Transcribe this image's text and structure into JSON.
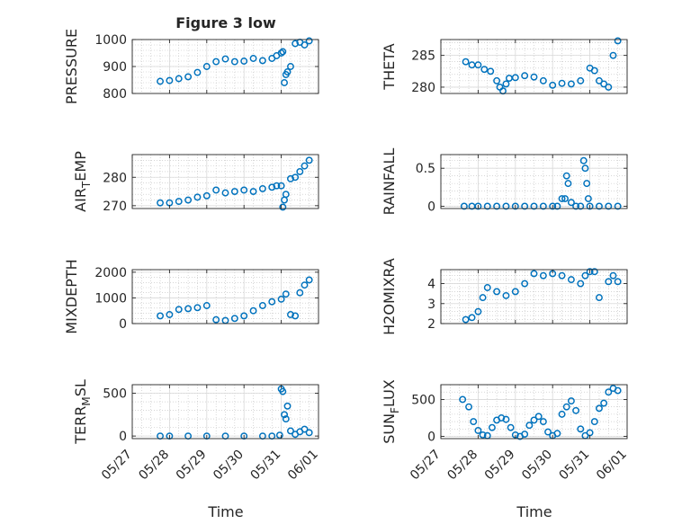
{
  "figure": {
    "title": "Figure 3 low",
    "xlabel": "Time"
  },
  "colors": {
    "marker": "#0072BD",
    "axis": "#262626",
    "grid": "#bfbfbf"
  },
  "chart_data": [
    {
      "id": "pressure",
      "type": "scatter",
      "ylabel": "PRESSURE",
      "ylim": [
        800,
        1000
      ],
      "yticks": [
        "800",
        "900",
        "1000"
      ],
      "xlim": [
        "05/27",
        "06/01"
      ],
      "xticks": [],
      "grid": "on",
      "x": [
        "05/27 18:00",
        "05/28 00:00",
        "05/28 06:00",
        "05/28 12:00",
        "05/28 18:00",
        "05/29 00:00",
        "05/29 06:00",
        "05/29 12:00",
        "05/29 18:00",
        "05/30 00:00",
        "05/30 06:00",
        "05/30 12:00",
        "05/30 18:00",
        "05/30 21:00",
        "05/31 00:00",
        "05/31 01:00",
        "05/31 02:00",
        "05/31 03:00",
        "05/31 04:00",
        "05/31 06:00",
        "05/31 09:00",
        "05/31 12:00",
        "05/31 15:00",
        "05/31 18:00"
      ],
      "y": [
        845,
        848,
        855,
        862,
        878,
        900,
        918,
        928,
        918,
        920,
        930,
        922,
        930,
        940,
        950,
        955,
        840,
        870,
        880,
        900,
        985,
        990,
        980,
        995
      ]
    },
    {
      "id": "theta",
      "type": "scatter",
      "ylabel": "THETA",
      "ylim": [
        279,
        287.5
      ],
      "yticks": [
        "280",
        "285"
      ],
      "xlim": [
        "05/27",
        "06/01"
      ],
      "xticks": [],
      "grid": "on",
      "x": [
        "05/27 16:00",
        "05/27 20:00",
        "05/28 00:00",
        "05/28 04:00",
        "05/28 08:00",
        "05/28 12:00",
        "05/28 14:00",
        "05/28 16:00",
        "05/28 18:00",
        "05/28 20:00",
        "05/29 00:00",
        "05/29 06:00",
        "05/29 12:00",
        "05/29 18:00",
        "05/30 00:00",
        "05/30 06:00",
        "05/30 12:00",
        "05/30 18:00",
        "05/31 00:00",
        "05/31 03:00",
        "05/31 06:00",
        "05/31 09:00",
        "05/31 12:00",
        "05/31 15:00",
        "05/31 18:00"
      ],
      "y": [
        284,
        283.5,
        283.5,
        282.8,
        282.5,
        281,
        280,
        279.4,
        280.5,
        281.4,
        281.5,
        281.8,
        281.6,
        281,
        280.3,
        280.6,
        280.5,
        281,
        283,
        282.6,
        281,
        280.5,
        280,
        285,
        287.3
      ]
    },
    {
      "id": "airtemp",
      "type": "scatter",
      "ylabel": "AIR_TEMP",
      "ylabel_main": "AIR",
      "ylabel_sub": "T",
      "ylabel_rest": "EMP",
      "ylim": [
        269,
        288
      ],
      "yticks": [
        "270",
        "280"
      ],
      "xlim": [
        "05/27",
        "06/01"
      ],
      "xticks": [],
      "grid": "on",
      "x": [
        "05/27 18:00",
        "05/28 00:00",
        "05/28 06:00",
        "05/28 12:00",
        "05/28 18:00",
        "05/29 00:00",
        "05/29 06:00",
        "05/29 12:00",
        "05/29 18:00",
        "05/30 00:00",
        "05/30 06:00",
        "05/30 12:00",
        "05/30 18:00",
        "05/30 21:00",
        "05/31 00:00",
        "05/31 01:00",
        "05/31 02:00",
        "05/31 03:00",
        "05/31 06:00",
        "05/31 09:00",
        "05/31 12:00",
        "05/31 15:00",
        "05/31 18:00"
      ],
      "y": [
        271,
        271,
        271.5,
        272,
        273,
        273.5,
        275.5,
        274.5,
        275,
        275.5,
        275,
        276,
        276.5,
        277,
        277,
        269.5,
        272,
        274,
        279.5,
        280,
        282,
        284,
        286
      ]
    },
    {
      "id": "rainfall",
      "type": "scatter",
      "ylabel": "RAINFALL",
      "ylim": [
        -0.03,
        0.68
      ],
      "yticks": [
        "0",
        "0.5"
      ],
      "xlim": [
        "05/27",
        "06/01"
      ],
      "xticks": [],
      "grid": "on",
      "x": [
        "05/27 15:00",
        "05/27 20:00",
        "05/28 00:00",
        "05/28 06:00",
        "05/28 12:00",
        "05/28 18:00",
        "05/29 00:00",
        "05/29 06:00",
        "05/29 12:00",
        "05/29 18:00",
        "05/30 00:00",
        "05/30 03:00",
        "05/30 06:00",
        "05/30 08:00",
        "05/30 09:00",
        "05/30 10:00",
        "05/30 12:00",
        "05/30 15:00",
        "05/30 18:00",
        "05/30 20:00",
        "05/30 21:00",
        "05/30 22:00",
        "05/30 23:00",
        "05/31 00:00",
        "05/31 06:00",
        "05/31 12:00",
        "05/31 18:00"
      ],
      "y": [
        0,
        0,
        0,
        0,
        0,
        0,
        0,
        0,
        0,
        0,
        0,
        0,
        0.1,
        0.1,
        0.4,
        0.3,
        0.05,
        0,
        0,
        0.6,
        0.5,
        0.3,
        0.1,
        0,
        0,
        0,
        0
      ]
    },
    {
      "id": "mixdepth",
      "type": "scatter",
      "ylabel": "MIXDEPTH",
      "ylim": [
        0,
        2100
      ],
      "yticks": [
        "0",
        "1000",
        "2000"
      ],
      "xlim": [
        "05/27",
        "06/01"
      ],
      "xticks": [],
      "grid": "on",
      "x": [
        "05/27 18:00",
        "05/28 00:00",
        "05/28 06:00",
        "05/28 12:00",
        "05/28 18:00",
        "05/29 00:00",
        "05/29 06:00",
        "05/29 12:00",
        "05/29 18:00",
        "05/30 00:00",
        "05/30 06:00",
        "05/30 12:00",
        "05/30 18:00",
        "05/31 00:00",
        "05/31 03:00",
        "05/31 06:00",
        "05/31 09:00",
        "05/31 12:00",
        "05/31 15:00",
        "05/31 18:00"
      ],
      "y": [
        300,
        350,
        550,
        580,
        620,
        700,
        150,
        120,
        200,
        300,
        500,
        700,
        850,
        950,
        1150,
        350,
        300,
        1200,
        1500,
        1700
      ]
    },
    {
      "id": "h2omixra",
      "type": "scatter",
      "ylabel": "H2OMIXRA",
      "ylim": [
        2,
        4.7
      ],
      "yticks": [
        "2",
        "3",
        "4"
      ],
      "xlim": [
        "05/27",
        "06/01"
      ],
      "xticks": [],
      "grid": "on",
      "x": [
        "05/27 16:00",
        "05/27 20:00",
        "05/28 00:00",
        "05/28 03:00",
        "05/28 06:00",
        "05/28 12:00",
        "05/28 18:00",
        "05/29 00:00",
        "05/29 06:00",
        "05/29 12:00",
        "05/29 18:00",
        "05/30 00:00",
        "05/30 06:00",
        "05/30 12:00",
        "05/30 18:00",
        "05/30 21:00",
        "05/31 00:00",
        "05/31 03:00",
        "05/31 06:00",
        "05/31 12:00",
        "05/31 15:00",
        "05/31 18:00"
      ],
      "y": [
        2.2,
        2.3,
        2.6,
        3.3,
        3.8,
        3.6,
        3.4,
        3.6,
        4,
        4.5,
        4.4,
        4.5,
        4.4,
        4.2,
        4,
        4.4,
        4.6,
        4.6,
        3.3,
        4.1,
        4.4,
        4.1
      ]
    },
    {
      "id": "terrmsl",
      "type": "scatter",
      "ylabel": "TERR_MSL",
      "ylabel_main": "TERR",
      "ylabel_sub": "M",
      "ylabel_rest": "SL",
      "ylim": [
        -30,
        600
      ],
      "yticks": [
        "0",
        "500"
      ],
      "xlim": [
        "05/27",
        "06/01"
      ],
      "xticks": [
        "05/27",
        "05/28",
        "05/29",
        "05/30",
        "05/31",
        "06/01"
      ],
      "grid": "on",
      "x": [
        "05/27 18:00",
        "05/28 00:00",
        "05/28 12:00",
        "05/29 00:00",
        "05/29 12:00",
        "05/30 00:00",
        "05/30 12:00",
        "05/30 18:00",
        "05/30 23:00",
        "05/31 00:00",
        "05/31 01:00",
        "05/31 02:00",
        "05/31 03:00",
        "05/31 04:00",
        "05/31 06:00",
        "05/31 09:00",
        "05/31 12:00",
        "05/31 15:00",
        "05/31 18:00"
      ],
      "y": [
        0,
        0,
        0,
        0,
        0,
        0,
        0,
        0,
        10,
        550,
        520,
        250,
        200,
        350,
        60,
        20,
        50,
        80,
        40
      ]
    },
    {
      "id": "sunflux",
      "type": "scatter",
      "ylabel": "SUN_FLUX",
      "ylabel_main": "SUN",
      "ylabel_sub": "F",
      "ylabel_rest": "LUX",
      "ylim": [
        -30,
        700
      ],
      "yticks": [
        "0",
        "500"
      ],
      "xlim": [
        "05/27",
        "06/01"
      ],
      "xticks": [
        "05/27",
        "05/28",
        "05/29",
        "05/30",
        "05/31",
        "06/01"
      ],
      "grid": "on",
      "x": [
        "05/27 14:00",
        "05/27 18:00",
        "05/27 21:00",
        "05/28 00:00",
        "05/28 03:00",
        "05/28 06:00",
        "05/28 09:00",
        "05/28 12:00",
        "05/28 15:00",
        "05/28 18:00",
        "05/28 21:00",
        "05/29 00:00",
        "05/29 03:00",
        "05/29 06:00",
        "05/29 09:00",
        "05/29 12:00",
        "05/29 15:00",
        "05/29 18:00",
        "05/29 21:00",
        "05/30 00:00",
        "05/30 03:00",
        "05/30 06:00",
        "05/30 09:00",
        "05/30 12:00",
        "05/30 15:00",
        "05/30 18:00",
        "05/30 21:00",
        "05/31 00:00",
        "05/31 03:00",
        "05/31 06:00",
        "05/31 09:00",
        "05/31 12:00",
        "05/31 15:00",
        "05/31 18:00"
      ],
      "y": [
        500,
        400,
        200,
        80,
        20,
        10,
        120,
        220,
        250,
        230,
        120,
        20,
        0,
        30,
        150,
        220,
        270,
        200,
        60,
        10,
        40,
        300,
        400,
        480,
        350,
        100,
        10,
        50,
        200,
        380,
        450,
        600,
        650,
        620
      ]
    }
  ]
}
